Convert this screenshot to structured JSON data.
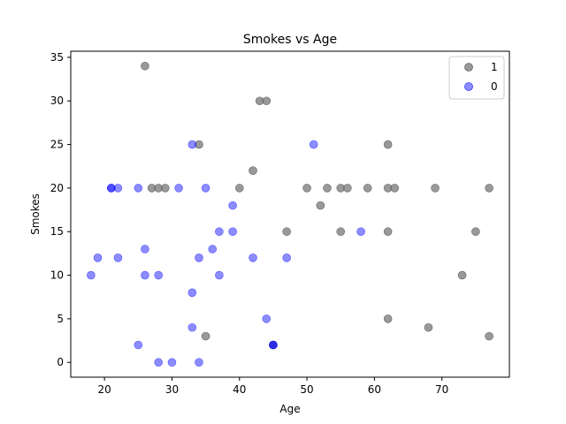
{
  "chart_data": {
    "type": "scatter",
    "title": "Smokes vs Age",
    "xlabel": "Age",
    "ylabel": "Smokes",
    "xlim": [
      15,
      80
    ],
    "ylim": [
      -1.7,
      35.7
    ],
    "xticks": [
      20,
      30,
      40,
      50,
      60,
      70
    ],
    "yticks": [
      0,
      5,
      10,
      15,
      20,
      25,
      30,
      35
    ],
    "grid": false,
    "legend_position": "top-right",
    "series": [
      {
        "name": "1",
        "color": "#808080",
        "points": [
          [
            26,
            34
          ],
          [
            43,
            30
          ],
          [
            44,
            30
          ],
          [
            34,
            25
          ],
          [
            62,
            25
          ],
          [
            42,
            22
          ],
          [
            27,
            20
          ],
          [
            28,
            20
          ],
          [
            29,
            20
          ],
          [
            40,
            20
          ],
          [
            50,
            20
          ],
          [
            53,
            20
          ],
          [
            55,
            20
          ],
          [
            56,
            20
          ],
          [
            59,
            20
          ],
          [
            62,
            20
          ],
          [
            63,
            20
          ],
          [
            69,
            20
          ],
          [
            77,
            20
          ],
          [
            52,
            18
          ],
          [
            47,
            15
          ],
          [
            55,
            15
          ],
          [
            62,
            15
          ],
          [
            75,
            15
          ],
          [
            73,
            10
          ],
          [
            62,
            5
          ],
          [
            68,
            4
          ],
          [
            77,
            3
          ],
          [
            35,
            3
          ],
          [
            45,
            2
          ]
        ]
      },
      {
        "name": "0",
        "color": "#0000ff",
        "points": [
          [
            33,
            25
          ],
          [
            51,
            25
          ],
          [
            21,
            20
          ],
          [
            21,
            20
          ],
          [
            22,
            20
          ],
          [
            25,
            20
          ],
          [
            31,
            20
          ],
          [
            35,
            20
          ],
          [
            39,
            18
          ],
          [
            26,
            13
          ],
          [
            36,
            13
          ],
          [
            37,
            15
          ],
          [
            39,
            15
          ],
          [
            58,
            15
          ],
          [
            19,
            12
          ],
          [
            22,
            12
          ],
          [
            34,
            12
          ],
          [
            42,
            12
          ],
          [
            47,
            12
          ],
          [
            18,
            10
          ],
          [
            26,
            10
          ],
          [
            28,
            10
          ],
          [
            37,
            10
          ],
          [
            33,
            8
          ],
          [
            44,
            5
          ],
          [
            33,
            4
          ],
          [
            25,
            2
          ],
          [
            45,
            2
          ],
          [
            45,
            2
          ],
          [
            28,
            0
          ],
          [
            30,
            0
          ],
          [
            34,
            0
          ]
        ]
      }
    ]
  }
}
